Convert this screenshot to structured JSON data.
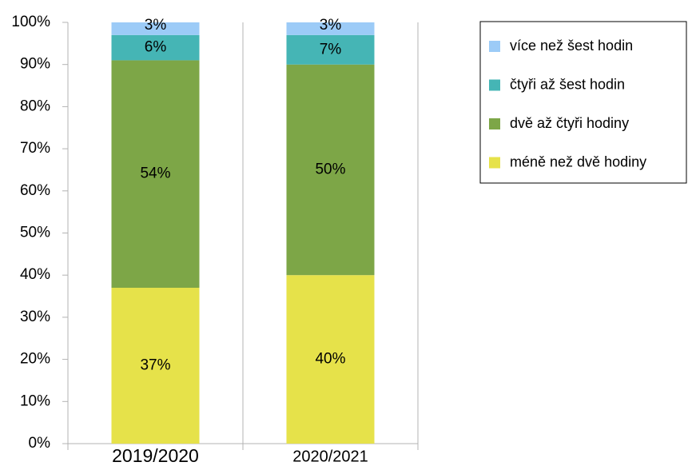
{
  "chart_data": {
    "type": "stacked_bar",
    "categories": [
      "2019/2020",
      "2020/2021"
    ],
    "series": [
      {
        "name": "méně než dvě hodiny",
        "color": "#e6e24a",
        "values": [
          37,
          40
        ],
        "value_labels": [
          "37%",
          "40%"
        ]
      },
      {
        "name": "dvě až čtyři hodiny",
        "color": "#7da647",
        "values": [
          54,
          50
        ],
        "value_labels": [
          "54%",
          "50%"
        ]
      },
      {
        "name": "čtyři až šest hodin",
        "color": "#45b5b5",
        "values": [
          6,
          7
        ],
        "value_labels": [
          "6%",
          "7%"
        ]
      },
      {
        "name": "více než šest hodin",
        "color": "#9ccbf7",
        "values": [
          3,
          3
        ],
        "value_labels": [
          "3%",
          "3%"
        ]
      }
    ],
    "ylim": [
      0,
      100
    ],
    "yticks": [
      {
        "value": 0,
        "label": "0%"
      },
      {
        "value": 10,
        "label": "10%"
      },
      {
        "value": 20,
        "label": "20%"
      },
      {
        "value": 30,
        "label": "30%"
      },
      {
        "value": 40,
        "label": "40%"
      },
      {
        "value": 50,
        "label": "50%"
      },
      {
        "value": 60,
        "label": "60%"
      },
      {
        "value": 70,
        "label": "70%"
      },
      {
        "value": 80,
        "label": "80%"
      },
      {
        "value": 90,
        "label": "90%"
      },
      {
        "value": 100,
        "label": "100%"
      }
    ],
    "legend": "right"
  }
}
